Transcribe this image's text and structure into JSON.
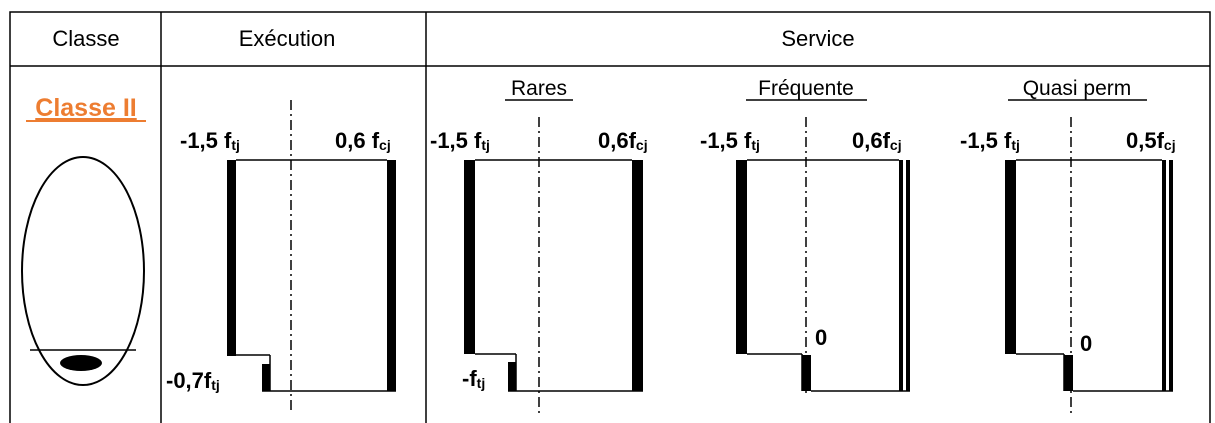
{
  "table": {
    "headers": {
      "classe": "Classe",
      "execution": "Exécution",
      "service": "Service"
    },
    "class_label": "Classe II",
    "class_label_color": "#ED7D31",
    "service_cases": {
      "rares": "Rares",
      "frequente": "Fréquente",
      "quasi_perm": "Quasi perm"
    }
  },
  "diagrams": {
    "execution": {
      "top_left": {
        "main": "-1,5 f",
        "sub": "tj"
      },
      "top_right": {
        "main": "0,6 f",
        "sub": "cj"
      },
      "bottom_left": {
        "main": "-0,7f",
        "sub": "tj"
      }
    },
    "rares": {
      "top_left": {
        "main": "-1,5 f",
        "sub": "tj"
      },
      "top_right": {
        "main": "0,6f",
        "sub": "cj"
      },
      "bottom_left": {
        "main": "-f",
        "sub": "tj"
      }
    },
    "frequente": {
      "top_left": {
        "main": "-1,5 f",
        "sub": "tj"
      },
      "top_right": {
        "main": "0,6f",
        "sub": "cj"
      },
      "bottom_value": "0"
    },
    "quasi_perm": {
      "top_left": {
        "main": "-1,5 f",
        "sub": "tj"
      },
      "top_right": {
        "main": "0,5f",
        "sub": "cj"
      },
      "bottom_value": "0"
    }
  }
}
